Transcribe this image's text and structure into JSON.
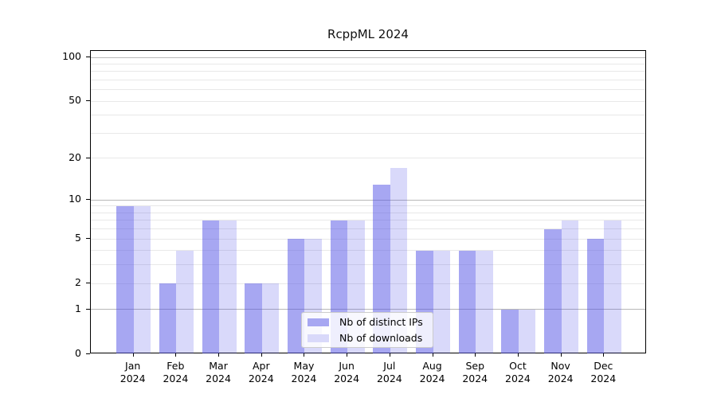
{
  "title": "RcppML 2024",
  "chart_data": {
    "type": "bar",
    "title": "RcppML 2024",
    "xlabel": "",
    "ylabel": "",
    "scale": "log1p",
    "grid": true,
    "legend_position": "inside lower-center",
    "categories": [
      "Jan",
      "Feb",
      "Mar",
      "Apr",
      "May",
      "Jun",
      "Jul",
      "Aug",
      "Sep",
      "Oct",
      "Nov",
      "Dec"
    ],
    "year_label": "2024",
    "series": [
      {
        "name": "Nb of distinct IPs",
        "color": "rgba(80,80,230,0.5)",
        "legend_color": "#a7a7f2",
        "values": [
          9,
          2,
          7,
          2,
          5,
          7,
          13,
          4,
          4,
          1,
          6,
          5
        ]
      },
      {
        "name": "Nb of downloads",
        "color": "rgba(65,65,230,0.2)",
        "legend_color": "#d9d9fa",
        "values": [
          9,
          4,
          7,
          2,
          5,
          7,
          17,
          4,
          4,
          1,
          7,
          7
        ]
      }
    ],
    "y_ticks": [
      0,
      1,
      2,
      5,
      10,
      20,
      50,
      100
    ],
    "major_gridlines": [
      1,
      10,
      100
    ],
    "minor_gridlines": [
      2,
      3,
      4,
      5,
      6,
      7,
      8,
      9,
      20,
      30,
      40,
      50,
      60,
      70,
      80,
      90
    ],
    "ylim": [
      0,
      110
    ],
    "colors": {
      "spine": "#000000",
      "major_grid": "#b8b8b8",
      "minor_grid": "#e8e8e8",
      "background": "#ffffff"
    }
  }
}
